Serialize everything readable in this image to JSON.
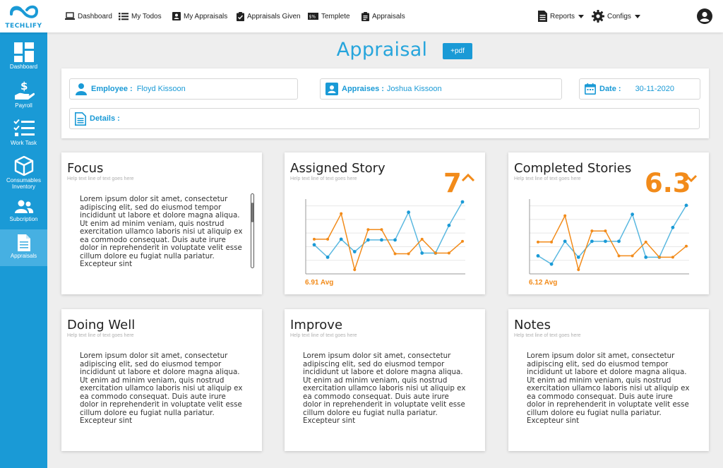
{
  "brand": {
    "name": "TECHLIFY",
    "color": "#1a9ad6"
  },
  "topnav": {
    "items": [
      {
        "label": "Dashboard",
        "icon": "laptop-icon"
      },
      {
        "label": "My Todos",
        "icon": "list-icon"
      },
      {
        "label": "My Appraisals",
        "icon": "id-card-icon"
      },
      {
        "label": "Appraisals Given",
        "icon": "clipboard-check-icon"
      },
      {
        "label": "Templete",
        "icon": "template-icon"
      },
      {
        "label": "Appraisals",
        "icon": "clipboard-icon"
      }
    ],
    "reports_label": "Reports",
    "configs_label": "Configs"
  },
  "sidebar": {
    "items": [
      {
        "label": "Dashboard",
        "icon": "dashboard-grid-icon"
      },
      {
        "label": "Payroll",
        "icon": "payroll-hand-dollar-icon"
      },
      {
        "label": "Work Task",
        "icon": "checklist-icon"
      },
      {
        "label_line1": "Consumables",
        "label_line2": "Inventory",
        "icon": "box-icon"
      },
      {
        "label": "Subcription",
        "icon": "users-icon"
      },
      {
        "label": "Appraisals",
        "icon": "document-icon",
        "active": true
      }
    ]
  },
  "page": {
    "title": "Appraisal",
    "pdf_label": "+pdf"
  },
  "info": {
    "employee_label": "Employee :",
    "employee_value": "Floyd Kissoon",
    "appraises_label": "Appraises :",
    "appraises_value": "Joshua Kissoon",
    "date_label": "Date :",
    "date_value": "30-11-2020",
    "details_label": "Details :"
  },
  "lorem": "Lorem ipsum dolor sit amet, consectetur adipiscing elit, sed do eiusmod tempor incididunt ut labore et dolore magna aliqua. Ut enim ad minim veniam, quis nostrud exercitation ullamco laboris nisi ut aliquip ex ea commodo consequat. Duis aute irure dolor in reprehenderit in voluptate velit esse cillum dolore eu fugiat nulla pariatur. Excepteur sint",
  "help_text": "Help text line of text goes here",
  "cards": {
    "focus": {
      "title": "Focus"
    },
    "assigned": {
      "title": "Assigned Story",
      "score": "7",
      "trend": "up",
      "avg": "6.91 Avg"
    },
    "completed": {
      "title": "Completed Stories",
      "score": "6.3",
      "trend": "down",
      "avg": "6.12 Avg"
    },
    "doing_well": {
      "title": "Doing Well"
    },
    "improve": {
      "title": "Improve"
    },
    "notes": {
      "title": "Notes"
    }
  },
  "colors": {
    "orange": "#f28b1a",
    "blue": "#1a9ad6",
    "blue_line": "#5ab8e0"
  },
  "chart_data": [
    {
      "type": "line",
      "x": [
        0,
        1,
        2,
        3,
        4,
        5,
        6,
        7,
        8,
        9,
        10,
        11
      ],
      "ylim": [
        0,
        10
      ],
      "series": [
        {
          "values": [
            3.8,
            2.0,
            4.6,
            2.8,
            4.5,
            4.5,
            4.5,
            8.5,
            2.6,
            2.6,
            6.6,
            10.0
          ]
        },
        {
          "values": [
            4.6,
            4.6,
            8.3,
            0.2,
            6.0,
            6.0,
            2.5,
            2.5,
            4.6,
            2.6,
            2.6,
            4.3
          ]
        }
      ],
      "grid": true
    },
    {
      "type": "line",
      "x": [
        0,
        1,
        2,
        3,
        4,
        5,
        6,
        7,
        8,
        9,
        10,
        11
      ],
      "ylim": [
        0,
        10
      ],
      "series": [
        {
          "values": [
            2.2,
            1.0,
            4.3,
            2.0,
            4.3,
            4.3,
            4.3,
            8.2,
            2.0,
            2.0,
            6.3,
            9.5
          ]
        },
        {
          "values": [
            4.2,
            4.2,
            8.0,
            0.2,
            5.8,
            5.8,
            2.2,
            2.2,
            4.2,
            2.0,
            2.0,
            3.6
          ]
        }
      ],
      "grid": true
    }
  ]
}
